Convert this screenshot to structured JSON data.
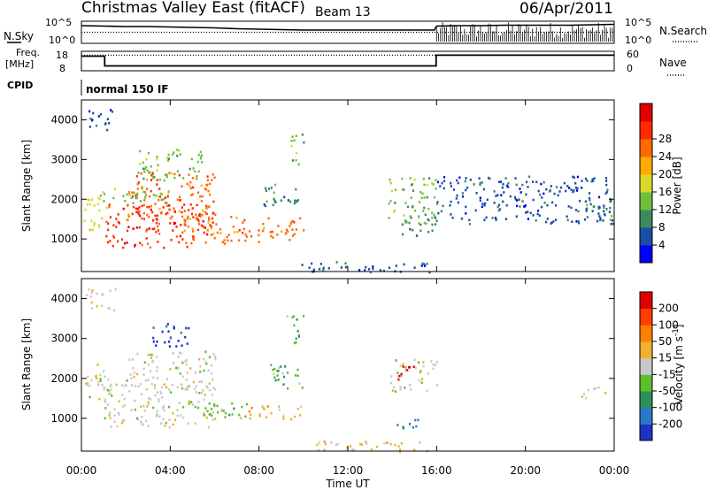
{
  "header": {
    "title": "Christmas Valley East (fitACF)",
    "beam": "Beam 13",
    "date": "06/Apr/2011"
  },
  "chart_data": [
    {
      "type": "line",
      "panel": "noise",
      "left_label": "N.Sky",
      "right_label": "N.Search",
      "left_ticks": [
        "10^5",
        "10^0"
      ],
      "right_ticks": [
        "10^5",
        "10^0"
      ],
      "series": [
        {
          "name": "N.Sky",
          "style": "solid",
          "x": [
            0,
            1,
            2,
            3,
            4,
            5,
            6,
            7,
            8,
            9,
            10,
            11,
            12,
            13,
            14,
            15,
            15.9,
            16,
            17,
            18,
            19,
            20,
            21,
            22,
            23,
            24
          ],
          "y": [
            4.0,
            3.9,
            3.8,
            3.8,
            3.7,
            3.6,
            3.5,
            3.3,
            3.2,
            3.1,
            3.0,
            3.0,
            3.0,
            3.0,
            3.0,
            3.0,
            3.0,
            3.9,
            4.0,
            4.0,
            4.1,
            4.1,
            4.1,
            4.1,
            4.2,
            4.3
          ]
        },
        {
          "name": "N.Search",
          "style": "dotted",
          "x": [
            0,
            24
          ],
          "y": [
            2.5,
            2.5
          ]
        }
      ]
    },
    {
      "type": "line",
      "panel": "frequency",
      "left_label": "Freq. [MHz]",
      "right_label": "Nave",
      "left_ticks": [
        18,
        8
      ],
      "right_ticks": [
        60,
        0
      ],
      "series": [
        {
          "name": "Freq.",
          "style": "solid",
          "x": [
            0,
            1.05,
            1.05,
            15.98,
            15.98,
            24
          ],
          "y": [
            15.5,
            15.5,
            10.5,
            10.5,
            16.0,
            16.0
          ]
        },
        {
          "name": "Nave",
          "style": "dotted",
          "x": [
            0,
            24
          ],
          "y": [
            48,
            48
          ]
        }
      ]
    },
    {
      "type": "heatmap",
      "panel": "power",
      "cpid_label": "CPID",
      "cpid_text": "normal 150 IF",
      "xlabel": "",
      "ylabel": "Slant Range [km]",
      "xlim": [
        0,
        24
      ],
      "ylim": [
        180,
        4500
      ],
      "y_ticks": [
        1000,
        2000,
        3000,
        4000
      ],
      "colorbar": {
        "label": "Power [dB]",
        "ticks": [
          "4",
          "8",
          "12",
          "16",
          "20",
          "24",
          "28"
        ],
        "colors": [
          "#0000ff",
          "#1a4ea6",
          "#3b8a5e",
          "#6fbf3f",
          "#d9d92b",
          "#ffaa00",
          "#ff6a00",
          "#ff2a00",
          "#e00000"
        ]
      },
      "regions": [
        {
          "t": [
            0.0,
            1.1
          ],
          "r": [
            1250,
            2200
          ],
          "c": 4
        },
        {
          "t": [
            1.0,
            6.0
          ],
          "r": [
            800,
            1900
          ],
          "c": 7
        },
        {
          "t": [
            2.0,
            6.0
          ],
          "r": [
            1500,
            2700
          ],
          "c": 6
        },
        {
          "t": [
            0.8,
            4.0
          ],
          "r": [
            1900,
            2300
          ],
          "c": 3
        },
        {
          "t": [
            2.5,
            5.5
          ],
          "r": [
            2500,
            3300
          ],
          "c": 3
        },
        {
          "t": [
            4.5,
            7.5
          ],
          "r": [
            900,
            1600
          ],
          "c": 6
        },
        {
          "t": [
            6.5,
            9.5
          ],
          "r": [
            950,
            1250
          ],
          "c": 6
        },
        {
          "t": [
            8.0,
            10.0
          ],
          "r": [
            1100,
            1550
          ],
          "c": 6
        },
        {
          "t": [
            8.0,
            9.8
          ],
          "r": [
            1800,
            2400
          ],
          "c": 2
        },
        {
          "t": [
            9.4,
            10.0
          ],
          "r": [
            2900,
            3700
          ],
          "c": 3
        },
        {
          "t": [
            13.8,
            16.0
          ],
          "r": [
            1400,
            2600
          ],
          "c": 3
        },
        {
          "t": [
            14.4,
            16.0
          ],
          "r": [
            1100,
            1600
          ],
          "c": 2
        },
        {
          "t": [
            9.8,
            16.0
          ],
          "r": [
            180,
            450
          ],
          "c": 1
        },
        {
          "t": [
            0.2,
            1.5
          ],
          "r": [
            3700,
            4300
          ],
          "c": 1
        },
        {
          "t": [
            16.0,
            24.0
          ],
          "r": [
            1400,
            2600
          ],
          "c": 1
        },
        {
          "t": [
            22.5,
            24.0
          ],
          "r": [
            1500,
            1900
          ],
          "c": 2
        }
      ]
    },
    {
      "type": "heatmap",
      "panel": "velocity",
      "xlabel": "Time UT",
      "ylabel": "Slant Range [km]",
      "xlim": [
        0,
        24
      ],
      "ylim": [
        180,
        4500
      ],
      "x_ticks": [
        "00:00",
        "04:00",
        "08:00",
        "12:00",
        "16:00",
        "20:00",
        "00:00"
      ],
      "y_ticks": [
        1000,
        2000,
        3000,
        4000
      ],
      "colorbar": {
        "label": "Velocity [m s^-1]",
        "ticks": [
          "200",
          "100",
          "50",
          "15",
          "-15",
          "-50",
          "-100",
          "-200"
        ],
        "colors": [
          "#1c33c4",
          "#2a78c8",
          "#2f8f5c",
          "#5cc02a",
          "#c8c8c8",
          "#f0b030",
          "#ff8000",
          "#ff4000",
          "#e00000"
        ]
      },
      "regions": [
        {
          "t": [
            0.0,
            1.2
          ],
          "r": [
            1500,
            2400
          ],
          "c": 4
        },
        {
          "t": [
            1.0,
            6.0
          ],
          "r": [
            800,
            1900
          ],
          "c": 4
        },
        {
          "t": [
            2.0,
            6.0
          ],
          "r": [
            1700,
            2700
          ],
          "c": 4
        },
        {
          "t": [
            3.0,
            4.8
          ],
          "r": [
            2800,
            3400
          ],
          "c": 0
        },
        {
          "t": [
            4.4,
            7.5
          ],
          "r": [
            1050,
            1450
          ],
          "c": 3
        },
        {
          "t": [
            7.0,
            10.0
          ],
          "r": [
            1000,
            1350
          ],
          "c": 5
        },
        {
          "t": [
            8.5,
            10.0
          ],
          "r": [
            1700,
            2400
          ],
          "c": 3
        },
        {
          "t": [
            13.9,
            16.0
          ],
          "r": [
            1700,
            2500
          ],
          "c": 4
        },
        {
          "t": [
            14.2,
            15.0
          ],
          "r": [
            2000,
            2400
          ],
          "c": 8
        },
        {
          "t": [
            14.2,
            15.2
          ],
          "r": [
            700,
            1000
          ],
          "c": 1
        },
        {
          "t": [
            10.5,
            16.0
          ],
          "r": [
            180,
            450
          ],
          "c": 5
        },
        {
          "t": [
            22.5,
            24.0
          ],
          "r": [
            1500,
            1800
          ],
          "c": 4
        },
        {
          "t": [
            0.2,
            1.5
          ],
          "r": [
            3700,
            4300
          ],
          "c": 4
        },
        {
          "t": [
            9.2,
            10.0
          ],
          "r": [
            2900,
            3600
          ],
          "c": 3
        }
      ]
    }
  ]
}
